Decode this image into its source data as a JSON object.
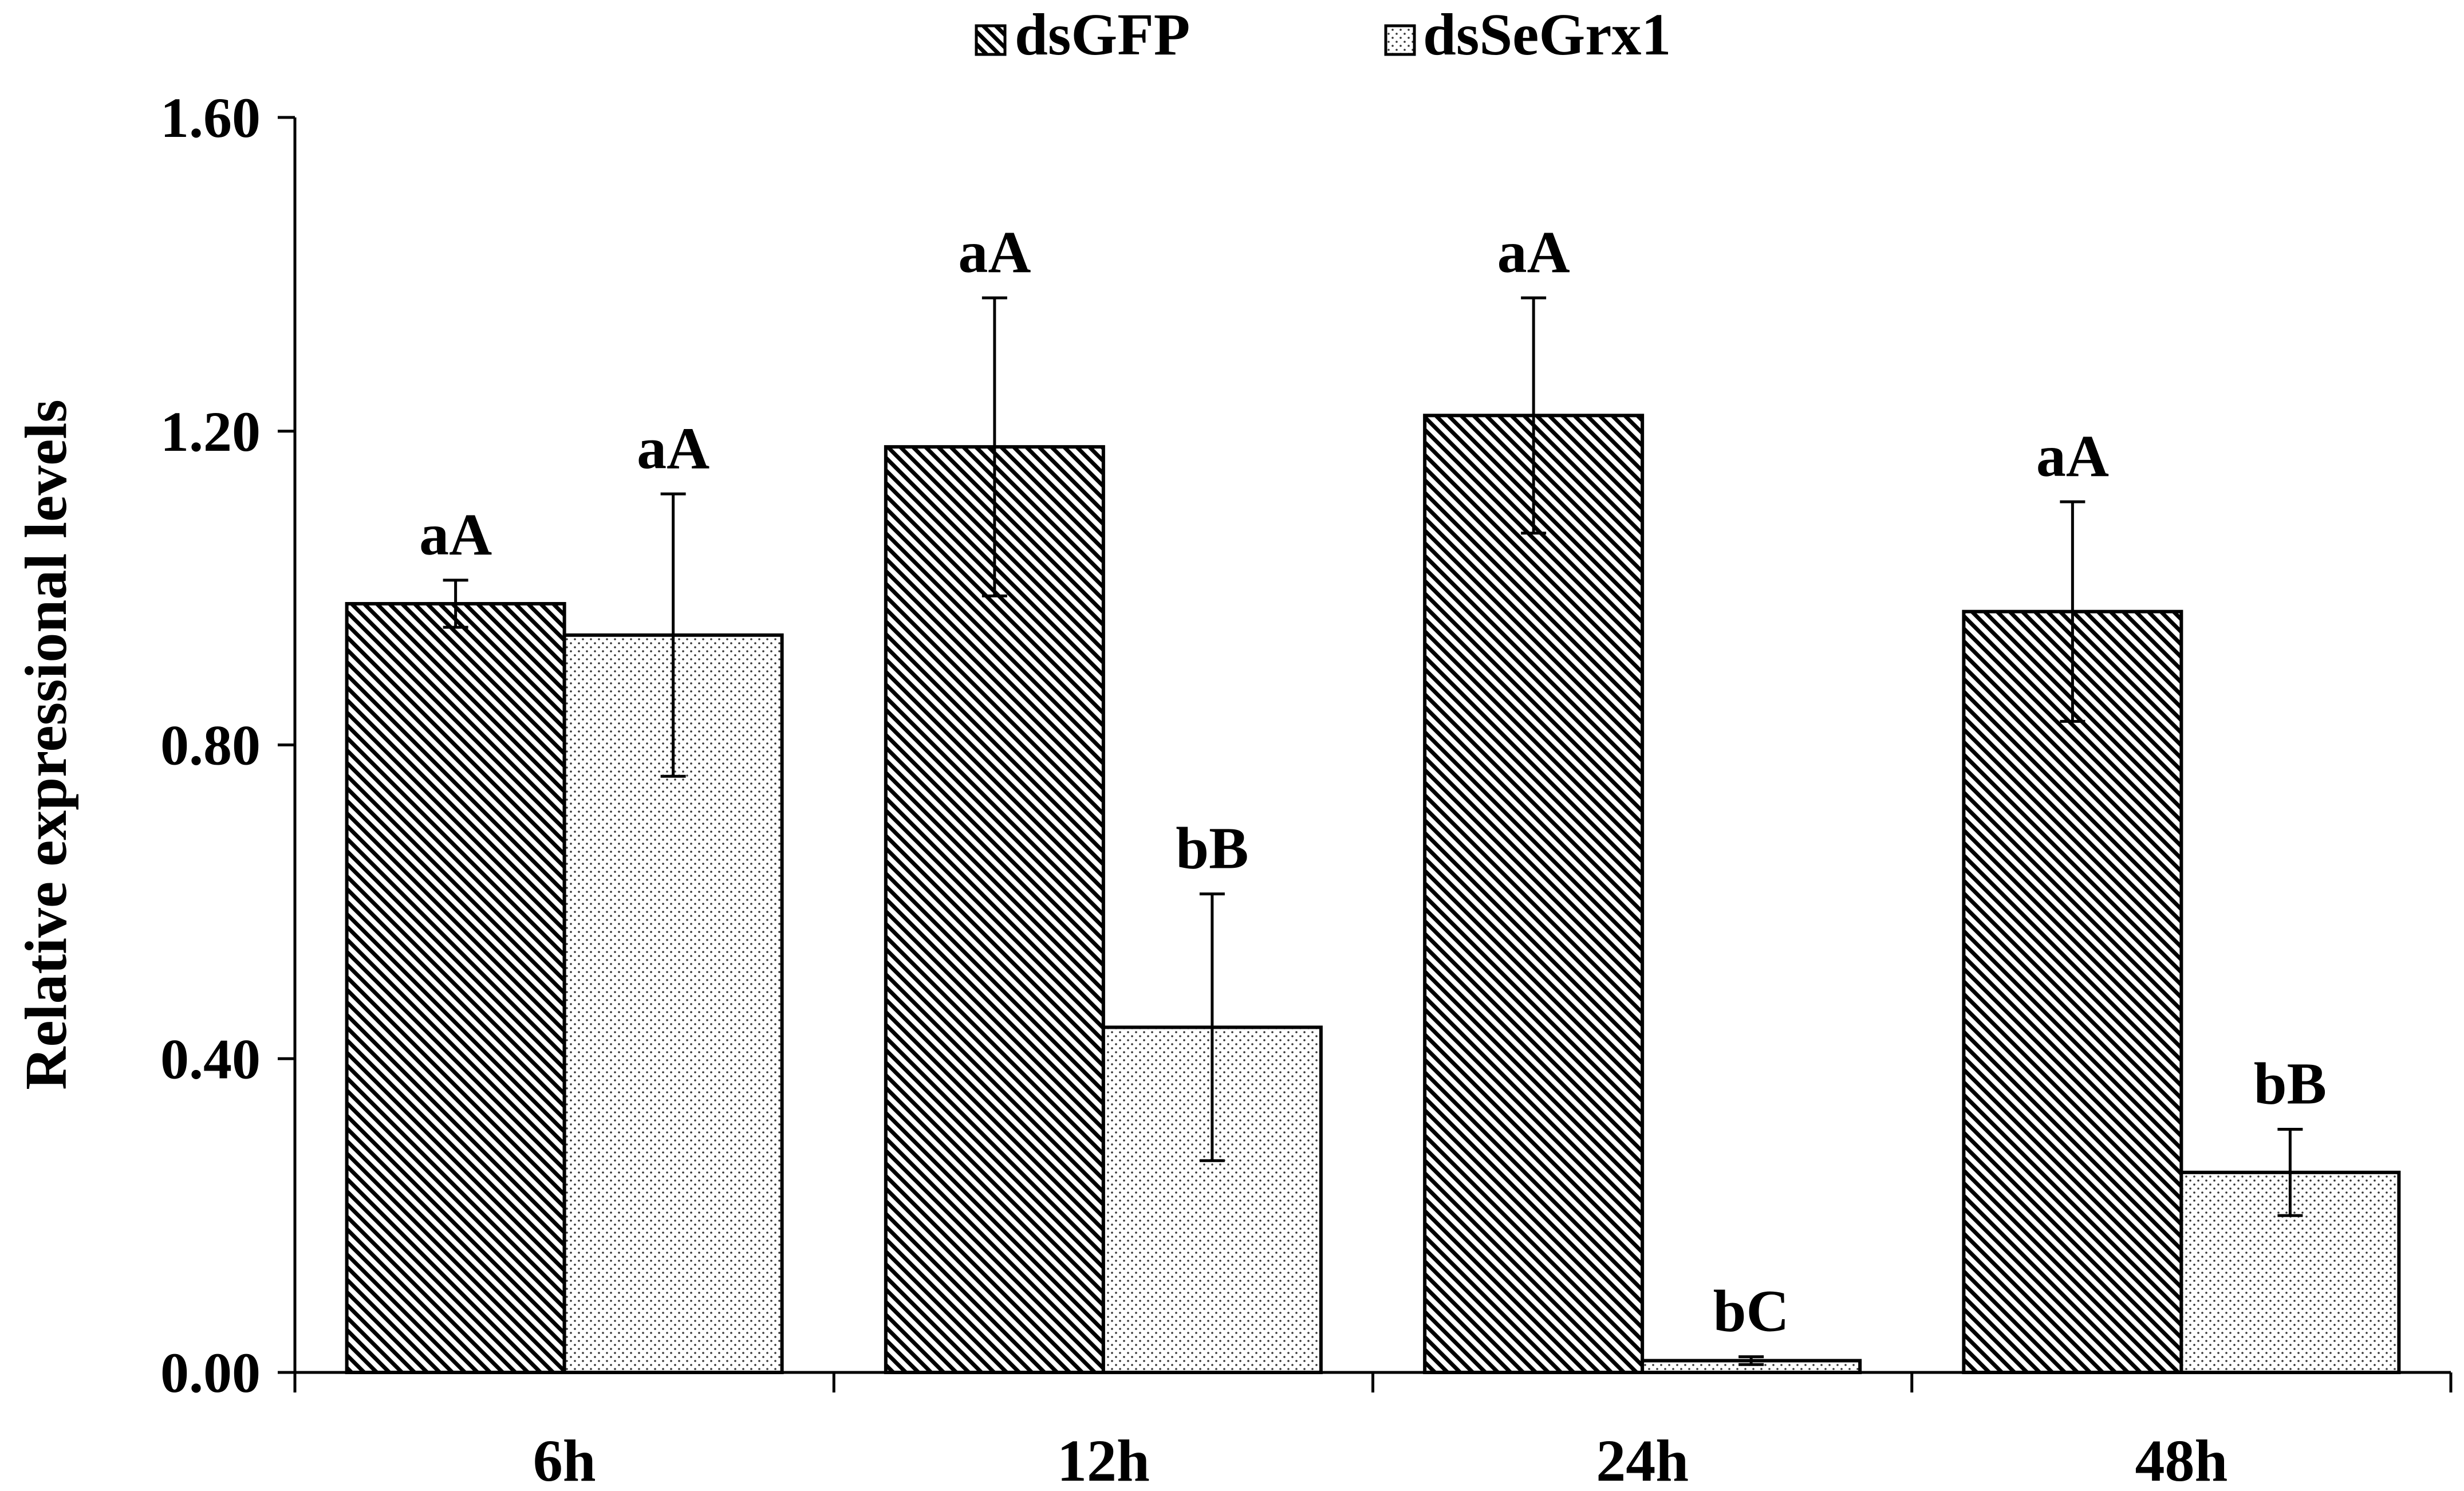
{
  "chart_data": {
    "type": "bar",
    "title": "",
    "xlabel": "",
    "ylabel": "Relative expressional levels",
    "categories": [
      "6h",
      "12h",
      "24h",
      "48h"
    ],
    "ylim": [
      0,
      1.6
    ],
    "yticks": [
      "0.00",
      "0.40",
      "0.80",
      "1.20",
      "1.60"
    ],
    "grid": false,
    "legend_position": "top-center",
    "series": [
      {
        "name": "dsGFP",
        "pattern": "diagonal-hatch",
        "values": [
          0.98,
          1.18,
          1.22,
          0.97
        ],
        "errors": [
          0.03,
          0.19,
          0.15,
          0.14
        ],
        "labels": [
          "aA",
          "aA",
          "aA",
          "aA"
        ]
      },
      {
        "name": "dsSeGrx1",
        "pattern": "dots",
        "values": [
          0.94,
          0.44,
          0.015,
          0.255
        ],
        "errors": [
          0.18,
          0.17,
          0.005,
          0.055
        ],
        "labels": [
          "aA",
          "bB",
          "bC",
          "bB"
        ]
      }
    ]
  }
}
